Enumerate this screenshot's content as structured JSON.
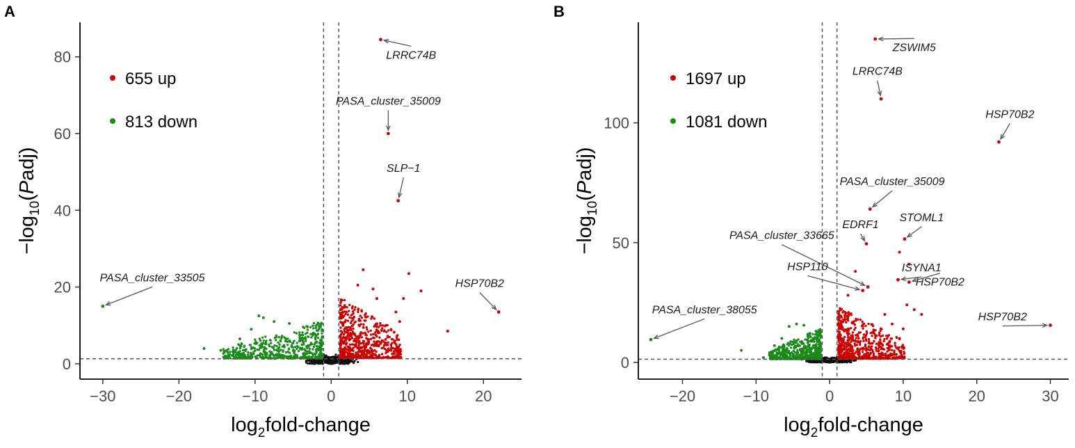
{
  "chart_data": [
    {
      "type": "scatter",
      "panel": "A",
      "xlabel": "log2fold-change",
      "ylabel": "−log10(Padj)",
      "xlim": [
        -33,
        25
      ],
      "ylim": [
        -4,
        89
      ],
      "xticks": [
        -30,
        -20,
        -10,
        0,
        10,
        20
      ],
      "xtick_labels": [
        "−30",
        "−20",
        "−10",
        "0",
        "10",
        "20"
      ],
      "yticks": [
        0,
        20,
        40,
        60,
        80
      ],
      "ytick_labels": [
        "0",
        "20",
        "40",
        "60",
        "80"
      ],
      "thresholds": {
        "fc": [
          -1,
          1
        ],
        "padj_line": 1.3
      },
      "legend": {
        "up": {
          "count": "655",
          "label": "655 up"
        },
        "down": {
          "count": "813",
          "label": "813 down"
        }
      },
      "highlighted": [
        {
          "name": "LRRC74B",
          "x": 6.5,
          "y": 84.5,
          "label_x": 10.5,
          "label_y": 79.5,
          "color": "red"
        },
        {
          "name": "PASA_cluster_35009",
          "x": 7.5,
          "y": 60,
          "label_x": 7.5,
          "label_y": 67.5,
          "color": "red"
        },
        {
          "name": "SLP−1",
          "x": 8.8,
          "y": 42.5,
          "label_x": 9.5,
          "label_y": 50,
          "color": "red"
        },
        {
          "name": "HSP70B2",
          "x": 22,
          "y": 13.5,
          "label_x": 19.5,
          "label_y": 20,
          "color": "red"
        },
        {
          "name": "PASA_cluster_33505",
          "x": -30,
          "y": 15,
          "label_x": -23.5,
          "label_y": 21.5,
          "color": "green"
        }
      ],
      "extra_up_points": [
        [
          15.3,
          8.5
        ],
        [
          11.8,
          19
        ],
        [
          10.2,
          23.5
        ],
        [
          9.5,
          17
        ],
        [
          9,
          11
        ],
        [
          8.5,
          13.5
        ],
        [
          4.2,
          24.5
        ],
        [
          3.5,
          20.5
        ],
        [
          5.5,
          19.5
        ],
        [
          6,
          17
        ]
      ],
      "extra_down_points": [
        [
          -16.7,
          4
        ],
        [
          -14.5,
          3.5
        ],
        [
          -9.5,
          12.5
        ],
        [
          -8.9,
          12
        ],
        [
          -10.5,
          9
        ],
        [
          -12,
          6.5
        ],
        [
          -7.5,
          11
        ],
        [
          -5.5,
          10.5
        ]
      ]
    },
    {
      "type": "scatter",
      "panel": "B",
      "xlabel": "log2fold-change",
      "ylabel": "−log10(Padj)",
      "xlim": [
        -26,
        32.5
      ],
      "ylim": [
        -7,
        142
      ],
      "xticks": [
        -20,
        -10,
        0,
        10,
        20,
        30
      ],
      "xtick_labels": [
        "−20",
        "−10",
        "0",
        "10",
        "20",
        "30"
      ],
      "yticks": [
        0,
        50,
        100
      ],
      "ytick_labels": [
        "0",
        "50",
        "100"
      ],
      "thresholds": {
        "fc": [
          -1,
          1
        ],
        "padj_line": 1.3
      },
      "legend": {
        "up": {
          "count": "1697",
          "label": "1697 up"
        },
        "down": {
          "count": "1081",
          "label": "1081 down"
        }
      },
      "highlighted": [
        {
          "name": "ZSWIM5",
          "x": 6.2,
          "y": 135,
          "label_x": 11.5,
          "label_y": 130,
          "color": "red"
        },
        {
          "name": "LRRC74B",
          "x": 7,
          "y": 110,
          "label_x": 6.5,
          "label_y": 120,
          "color": "red"
        },
        {
          "name": "HSP70B2",
          "x": 23,
          "y": 92,
          "label_x": 24.5,
          "label_y": 102,
          "color": "red"
        },
        {
          "name": "PASA_cluster_35009",
          "x": 5.5,
          "y": 64,
          "label_x": 8.5,
          "label_y": 74,
          "color": "red"
        },
        {
          "name": "STOML1",
          "x": 10.2,
          "y": 51.5,
          "label_x": 12.5,
          "label_y": 59,
          "color": "red"
        },
        {
          "name": "EDRF1",
          "x": 5,
          "y": 49.5,
          "label_x": 4.2,
          "label_y": 56,
          "color": "red"
        },
        {
          "name": "PASA_cluster_33665",
          "x": 5.2,
          "y": 31.5,
          "label_x": -6.5,
          "label_y": 51.5,
          "color": "red"
        },
        {
          "name": "ISYNA1",
          "x": 9.3,
          "y": 34.5,
          "label_x": 12.5,
          "label_y": 38,
          "color": "red"
        },
        {
          "name": "HSP110",
          "x": 4.5,
          "y": 30,
          "label_x": -3,
          "label_y": 38.5,
          "color": "red"
        },
        {
          "name": "HSP70B2",
          "x": 10.8,
          "y": 33.5,
          "label_x": 15,
          "label_y": 32,
          "color": "red"
        },
        {
          "name": "HSP70B2",
          "x": 30,
          "y": 15.5,
          "label_x": 23.5,
          "label_y": 17.5,
          "color": "red"
        },
        {
          "name": "PASA_cluster_38055",
          "x": -24.3,
          "y": 9.5,
          "label_x": -17,
          "label_y": 20.5,
          "color": "green"
        }
      ],
      "extra_up_points": [
        [
          10.5,
          24
        ],
        [
          11.5,
          22
        ],
        [
          12.5,
          20
        ],
        [
          10,
          14
        ],
        [
          9.5,
          10
        ],
        [
          8.5,
          16
        ],
        [
          7.5,
          20
        ],
        [
          3.5,
          38
        ],
        [
          2.5,
          28
        ],
        [
          9.5,
          46
        ],
        [
          10.8,
          41
        ]
      ],
      "extra_down_points": [
        [
          -12,
          5
        ],
        [
          -9,
          2
        ],
        [
          -5.5,
          15
        ],
        [
          -4.5,
          16
        ],
        [
          -6.5,
          10
        ],
        [
          -7.5,
          7
        ],
        [
          -3.5,
          15.5
        ]
      ]
    }
  ]
}
